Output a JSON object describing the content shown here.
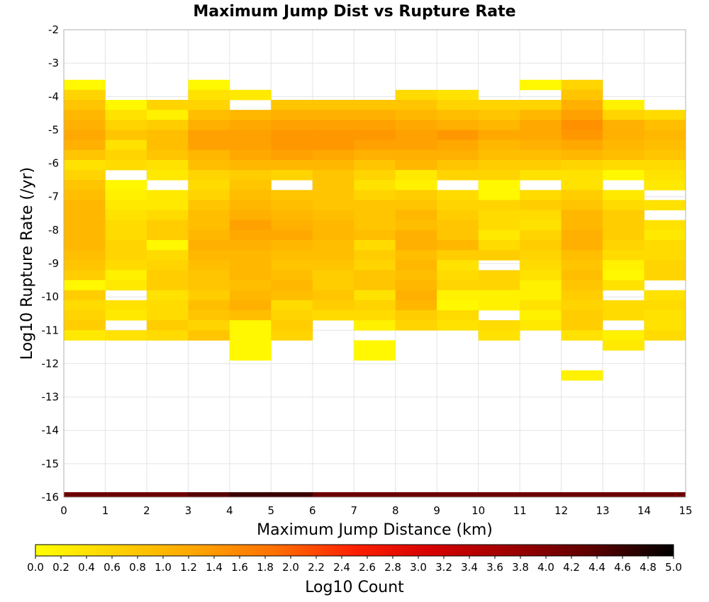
{
  "chart_data": {
    "type": "heatmap",
    "title": "Maximum Jump Dist vs Rupture Rate",
    "xlabel": "Maximum Jump Distance (km)",
    "ylabel": "Log10 Rupture Rate (/yr)",
    "xlim": [
      0,
      15
    ],
    "ylim": [
      -16,
      -2
    ],
    "x_ticks": [
      "0",
      "1",
      "2",
      "3",
      "4",
      "5",
      "6",
      "7",
      "8",
      "9",
      "10",
      "11",
      "12",
      "13",
      "14",
      "15"
    ],
    "y_ticks": [
      "-2",
      "-3",
      "-4",
      "-5",
      "-6",
      "-7",
      "-8",
      "-9",
      "-10",
      "-11",
      "-12",
      "-13",
      "-14",
      "-15",
      "-16"
    ],
    "grid": true,
    "x_bin_width": 1,
    "y_bin_height": 0.3,
    "x_bin_starts": [
      0,
      1,
      2,
      3,
      4,
      5,
      6,
      7,
      8,
      9,
      10,
      11,
      12,
      13,
      14
    ],
    "y_bin_starts": [
      -3.8,
      -4.1,
      -4.4,
      -4.7,
      -5.0,
      -5.3,
      -5.6,
      -5.9,
      -6.2,
      -6.5,
      -6.8,
      -7.1,
      -7.4,
      -7.7,
      -8.0,
      -8.3,
      -8.6,
      -8.9,
      -9.2,
      -9.5,
      -9.8,
      -10.1,
      -10.4,
      -10.7,
      -11.0,
      -11.3,
      -11.6,
      -11.9,
      -12.2,
      -12.5
    ],
    "log10_counts_by_column": [
      [
        0.1,
        0.6,
        0.8,
        1.0,
        1.1,
        1.2,
        1.1,
        0.8,
        0.4,
        0.6,
        0.8,
        0.9,
        1.0,
        1.0,
        1.0,
        1.0,
        1.0,
        0.9,
        0.8,
        0.7,
        0.1,
        0.7,
        0.5,
        0.6,
        0.7,
        0.3,
        null,
        null,
        null,
        null
      ],
      [
        null,
        null,
        0.1,
        0.4,
        0.6,
        0.8,
        0.4,
        0.6,
        0.5,
        null,
        0.1,
        0.2,
        0.3,
        0.4,
        0.5,
        0.5,
        0.6,
        0.6,
        0.5,
        0.2,
        0.3,
        null,
        0.4,
        0.3,
        null,
        0.4,
        null,
        null,
        null,
        null
      ],
      [
        null,
        null,
        0.6,
        0.2,
        0.7,
        0.9,
        0.9,
        0.8,
        0.4,
        0.3,
        null,
        0.3,
        0.3,
        0.5,
        0.7,
        0.7,
        0.1,
        0.5,
        0.6,
        0.7,
        0.7,
        0.4,
        0.5,
        0.5,
        0.7,
        0.5,
        null,
        null,
        null,
        null
      ],
      [
        0.1,
        0.4,
        0.6,
        0.9,
        1.1,
        1.3,
        1.3,
        1.0,
        0.9,
        0.6,
        0.5,
        0.6,
        0.8,
        0.9,
        0.9,
        1.0,
        1.1,
        1.0,
        0.9,
        0.8,
        0.8,
        0.7,
        0.9,
        0.8,
        0.6,
        0.8,
        null,
        null,
        null,
        null
      ],
      [
        null,
        0.3,
        null,
        1.0,
        1.2,
        1.3,
        1.3,
        1.2,
        1.0,
        0.7,
        0.8,
        0.9,
        1.0,
        1.1,
        1.3,
        1.2,
        1.1,
        1.0,
        1.0,
        1.0,
        0.9,
        1.0,
        1.1,
        0.9,
        0.1,
        0.1,
        0.1,
        0.1,
        null,
        null
      ],
      [
        null,
        null,
        0.8,
        1.1,
        1.3,
        1.4,
        1.4,
        1.3,
        1.0,
        0.6,
        null,
        0.8,
        0.9,
        1.0,
        1.1,
        1.2,
        1.0,
        0.9,
        0.8,
        0.9,
        1.0,
        0.9,
        0.5,
        0.6,
        0.7,
        0.6,
        null,
        null,
        null,
        null
      ],
      [
        null,
        null,
        0.8,
        1.1,
        1.3,
        1.4,
        1.4,
        1.2,
        1.0,
        0.8,
        0.8,
        0.8,
        0.8,
        0.9,
        1.0,
        1.0,
        0.9,
        0.9,
        0.8,
        0.7,
        0.7,
        0.8,
        0.7,
        0.5,
        null,
        null,
        null,
        null,
        null,
        null
      ],
      [
        null,
        null,
        0.8,
        1.1,
        1.3,
        1.4,
        1.3,
        1.1,
        0.8,
        0.6,
        0.4,
        0.6,
        0.8,
        0.8,
        0.8,
        0.9,
        0.5,
        0.7,
        0.6,
        0.8,
        0.8,
        0.4,
        0.6,
        0.5,
        0.2,
        null,
        0.1,
        0.1,
        null,
        null
      ],
      [
        null,
        0.5,
        0.8,
        1.0,
        1.2,
        1.3,
        1.3,
        1.1,
        1.0,
        0.3,
        0.2,
        0.7,
        0.8,
        1.0,
        0.9,
        1.1,
        1.1,
        0.9,
        1.0,
        0.9,
        1.0,
        1.1,
        1.0,
        0.7,
        0.6,
        null,
        null,
        null,
        null,
        null
      ],
      [
        null,
        0.4,
        0.6,
        0.9,
        1.1,
        1.4,
        1.2,
        1.1,
        0.8,
        0.6,
        null,
        0.5,
        0.6,
        0.7,
        0.8,
        0.8,
        1.0,
        0.7,
        0.4,
        0.5,
        0.6,
        0.2,
        0.1,
        0.5,
        0.4,
        null,
        null,
        null,
        null,
        null
      ],
      [
        null,
        null,
        0.6,
        0.8,
        1.0,
        1.2,
        1.0,
        0.9,
        0.7,
        0.6,
        0.1,
        0.1,
        0.6,
        0.5,
        0.5,
        0.3,
        0.5,
        0.7,
        null,
        0.6,
        0.6,
        0.2,
        0.2,
        null,
        0.5,
        0.4,
        null,
        null,
        null,
        null
      ],
      [
        0.1,
        null,
        0.6,
        1.0,
        1.2,
        1.2,
        1.1,
        0.9,
        0.7,
        0.4,
        null,
        0.5,
        0.7,
        0.5,
        0.4,
        0.6,
        0.7,
        0.6,
        0.5,
        0.4,
        0.2,
        0.2,
        0.4,
        0.2,
        0.3,
        null,
        null,
        null,
        null,
        null
      ],
      [
        0.6,
        0.8,
        1.1,
        1.3,
        1.5,
        1.4,
        1.2,
        1.0,
        0.6,
        0.4,
        0.4,
        0.7,
        0.8,
        1.0,
        1.0,
        1.1,
        1.1,
        0.9,
        0.8,
        0.9,
        0.8,
        0.7,
        0.6,
        0.7,
        0.7,
        0.4,
        null,
        null,
        null,
        0.2
      ],
      [
        null,
        null,
        0.2,
        0.6,
        1.1,
        1.1,
        1.0,
        0.9,
        0.5,
        0.1,
        null,
        0.3,
        0.5,
        0.7,
        0.7,
        0.7,
        0.6,
        0.5,
        0.2,
        0.1,
        0.4,
        null,
        0.5,
        0.5,
        null,
        0.2,
        0.3,
        null,
        null,
        null
      ],
      [
        null,
        null,
        null,
        0.5,
        0.9,
        1.0,
        0.9,
        0.8,
        0.5,
        0.4,
        0.3,
        null,
        0.4,
        null,
        0.4,
        0.3,
        0.5,
        0.5,
        0.6,
        0.6,
        null,
        0.4,
        0.5,
        0.4,
        0.4,
        0.5,
        null,
        null,
        null,
        null
      ]
    ],
    "bottom_strip_log10_counts": [
      4.2,
      4.2,
      4.2,
      4.4,
      4.6,
      4.6,
      4.2,
      4.2,
      4.2,
      4.2,
      4.2,
      4.2,
      4.2,
      4.2,
      4.2
    ],
    "colorbar": {
      "label": "Log10 Count",
      "min": 0.0,
      "max": 5.0,
      "ticks": [
        "0.0",
        "0.2",
        "0.4",
        "0.6",
        "0.8",
        "1.0",
        "1.2",
        "1.4",
        "1.6",
        "1.8",
        "2.0",
        "2.2",
        "2.4",
        "2.6",
        "2.8",
        "3.0",
        "3.2",
        "3.4",
        "3.6",
        "3.8",
        "4.0",
        "4.2",
        "4.4",
        "4.6",
        "4.8",
        "5.0"
      ],
      "colors": [
        "#ffff00",
        "#ffd200",
        "#ffa500",
        "#ff7000",
        "#ff2000",
        "#d40000",
        "#9b0000",
        "#5a0000",
        "#000000"
      ]
    }
  }
}
